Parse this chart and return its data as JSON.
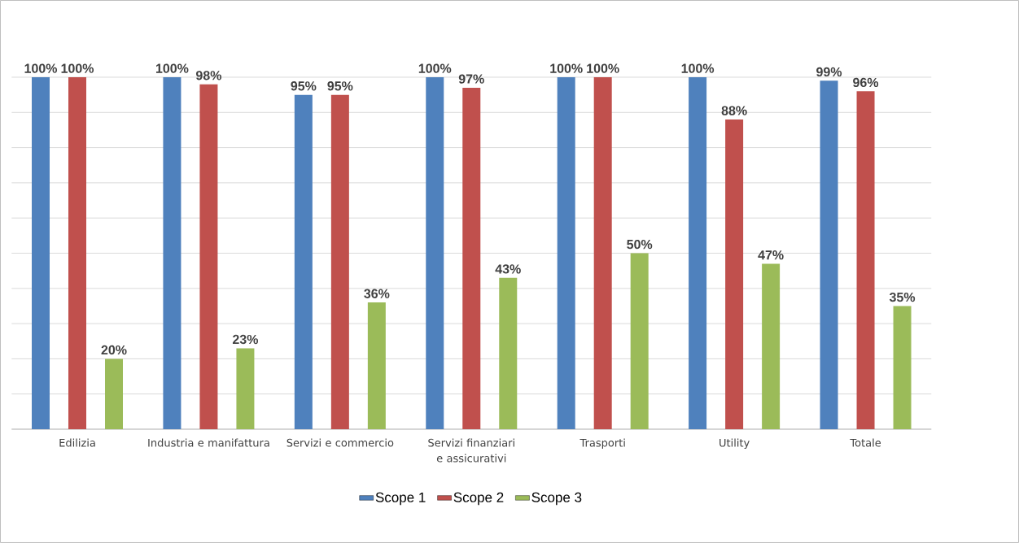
{
  "chart_data": {
    "type": "bar",
    "categories": [
      "Edilizia",
      "Industria e manifattura",
      "Servizi e commercio",
      "Servizi finanziari e assicurativi",
      "Trasporti",
      "Utility",
      "Totale"
    ],
    "series": [
      {
        "name": "Scope 1",
        "color": "#4f81bd",
        "values": [
          100,
          100,
          95,
          100,
          100,
          100,
          99
        ],
        "value_labels": [
          "100%",
          "100%",
          "95%",
          "100%",
          "100%",
          "100%",
          "99%"
        ]
      },
      {
        "name": "Scope 2",
        "color": "#c0504d",
        "values": [
          100,
          98,
          95,
          97,
          100,
          88,
          96
        ],
        "value_labels": [
          "100%",
          "98%",
          "95%",
          "97%",
          "100%",
          "88%",
          "96%"
        ]
      },
      {
        "name": "Scope 3",
        "color": "#9bbb59",
        "values": [
          20,
          23,
          36,
          43,
          50,
          47,
          35
        ],
        "value_labels": [
          "20%",
          "23%",
          "36%",
          "43%",
          "50%",
          "47%",
          "35%"
        ]
      }
    ],
    "ylim": [
      0,
      100
    ],
    "yticks": [
      {
        "value": 0,
        "label": null
      },
      {
        "value": 10,
        "label": null
      },
      {
        "value": 20,
        "label": null
      },
      {
        "value": 30,
        "label": null
      },
      {
        "value": 40,
        "label": null
      },
      {
        "value": 50,
        "label": null
      },
      {
        "value": 60,
        "label": null
      },
      {
        "value": 70,
        "label": null
      },
      {
        "value": 80,
        "label": null
      },
      {
        "value": 90,
        "label": null
      },
      {
        "value": 100,
        "label": null
      }
    ],
    "tick_labels": "x",
    "grid": "y",
    "legend": "bottom"
  }
}
